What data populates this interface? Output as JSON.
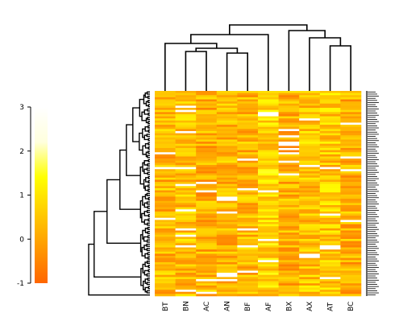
{
  "chart_data": {
    "type": "heatmap",
    "title": "",
    "xlabel": "",
    "ylabel": "",
    "columns": [
      "BT",
      "BN",
      "AC",
      "AN",
      "BF",
      "AF",
      "BX",
      "AX",
      "AT",
      "BC"
    ],
    "row_count": 97,
    "color_scale": {
      "min": -1,
      "max": 3,
      "ticks": [
        -1,
        0,
        1,
        2,
        3
      ],
      "colors": [
        "#ff6600",
        "#ff9900",
        "#ffcc00",
        "#ffff00",
        "#ffffdd",
        "#ffffff"
      ]
    },
    "column_dendrogram": true,
    "row_dendrogram": true,
    "row_labels_legible": false
  }
}
